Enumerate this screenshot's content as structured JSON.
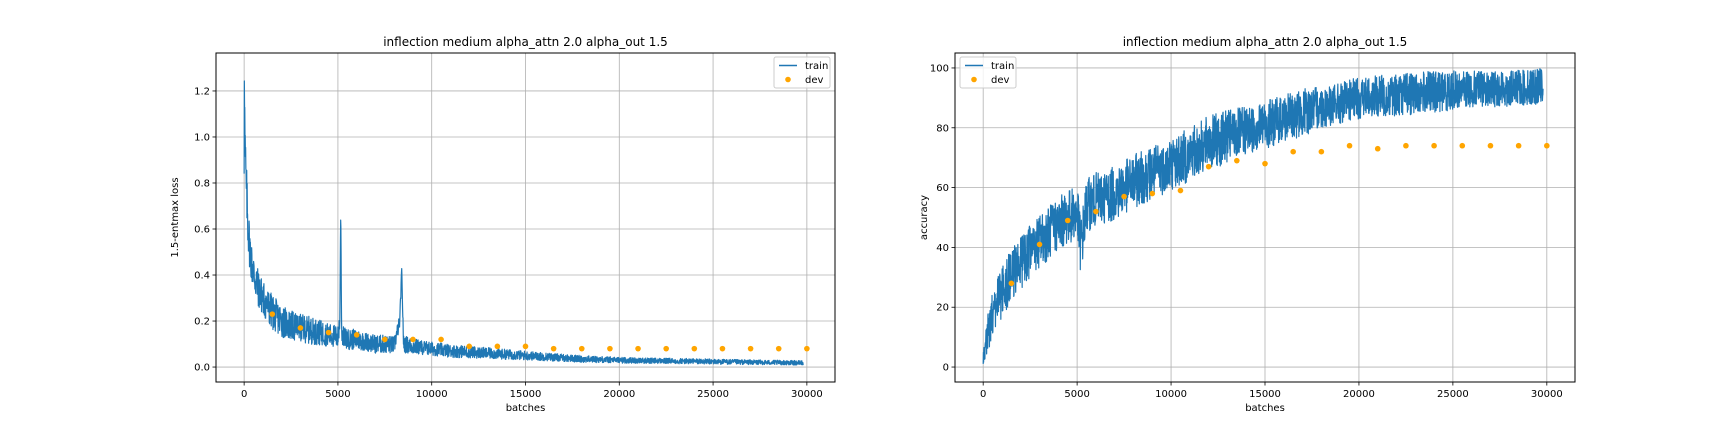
{
  "colors": {
    "train": "#1f77b4",
    "dev": "#ffa500",
    "grid": "#b0b0b0",
    "axes": "#000000",
    "legend_border": "#cccccc"
  },
  "chart_data": [
    {
      "type": "line",
      "title": "inflection medium alpha_attn 2.0 alpha_out 1.5",
      "xlabel": "batches",
      "ylabel": "1.5-entmax loss",
      "xlim": [
        -1500,
        31500
      ],
      "ylim": [
        -0.065,
        1.365
      ],
      "xticks": [
        0,
        5000,
        10000,
        15000,
        20000,
        25000,
        30000
      ],
      "yticks": [
        0.0,
        0.2,
        0.4,
        0.6,
        0.8,
        1.0,
        1.2
      ],
      "ytick_labels": [
        "0.0",
        "0.2",
        "0.4",
        "0.6",
        "0.8",
        "1.0",
        "1.2"
      ],
      "grid": true,
      "legend_placement": "top-right",
      "series": [
        {
          "name": "train",
          "kind": "line",
          "x": [
            0,
            10,
            50,
            100,
            150,
            200,
            300,
            400,
            600,
            800,
            1000,
            1300,
            1600,
            2000,
            2500,
            3000,
            3500,
            4000,
            4500,
            5000,
            5100,
            5150,
            5200,
            5300,
            5500,
            6000,
            6500,
            7000,
            7500,
            8000,
            8300,
            8400,
            8500,
            9000,
            9500,
            10000,
            11000,
            12000,
            13000,
            14000,
            15000,
            16000,
            17000,
            18000,
            19000,
            20000,
            22000,
            24000,
            26000,
            28000,
            29800
          ],
          "y": [
            0.85,
            1.3,
            0.95,
            0.8,
            0.72,
            0.62,
            0.52,
            0.45,
            0.38,
            0.33,
            0.3,
            0.26,
            0.23,
            0.2,
            0.18,
            0.17,
            0.16,
            0.15,
            0.14,
            0.13,
            0.2,
            0.69,
            0.15,
            0.13,
            0.12,
            0.12,
            0.11,
            0.1,
            0.1,
            0.095,
            0.2,
            0.42,
            0.1,
            0.09,
            0.085,
            0.08,
            0.07,
            0.065,
            0.06,
            0.055,
            0.05,
            0.045,
            0.04,
            0.035,
            0.033,
            0.03,
            0.027,
            0.025,
            0.022,
            0.02,
            0.018
          ],
          "noise_band": [
            0.02,
            0.06,
            0.14,
            0.13,
            0.12,
            0.11,
            0.1,
            0.09,
            0.09,
            0.08,
            0.08,
            0.08,
            0.075,
            0.07,
            0.065,
            0.06,
            0.06,
            0.055,
            0.05,
            0.05,
            0.05,
            0.02,
            0.05,
            0.045,
            0.045,
            0.045,
            0.04,
            0.04,
            0.04,
            0.038,
            0.03,
            0.02,
            0.038,
            0.035,
            0.032,
            0.03,
            0.028,
            0.026,
            0.024,
            0.022,
            0.02,
            0.018,
            0.016,
            0.015,
            0.014,
            0.013,
            0.012,
            0.012,
            0.011,
            0.01,
            0.01
          ]
        },
        {
          "name": "dev",
          "kind": "scatter",
          "x": [
            1500,
            3000,
            4500,
            6000,
            7500,
            9000,
            10500,
            12000,
            13500,
            15000,
            16500,
            18000,
            19500,
            21000,
            22500,
            24000,
            25500,
            27000,
            28500,
            30000
          ],
          "y": [
            0.23,
            0.17,
            0.15,
            0.14,
            0.12,
            0.12,
            0.12,
            0.09,
            0.09,
            0.09,
            0.08,
            0.08,
            0.08,
            0.08,
            0.08,
            0.08,
            0.08,
            0.08,
            0.08,
            0.08
          ]
        }
      ]
    },
    {
      "type": "line",
      "title": "inflection medium alpha_attn 2.0 alpha_out 1.5",
      "xlabel": "batches",
      "ylabel": "accuracy",
      "xlim": [
        -1500,
        31500
      ],
      "ylim": [
        -5,
        105
      ],
      "xticks": [
        0,
        5000,
        10000,
        15000,
        20000,
        25000,
        30000
      ],
      "yticks": [
        0,
        20,
        40,
        60,
        80,
        100
      ],
      "ytick_labels": [
        "0",
        "20",
        "40",
        "60",
        "80",
        "100"
      ],
      "grid": true,
      "legend_placement": "top-left",
      "series": [
        {
          "name": "train",
          "kind": "line",
          "x": [
            0,
            200,
            500,
            1000,
            1500,
            2000,
            2500,
            3000,
            3500,
            4000,
            4500,
            5000,
            5200,
            5500,
            6000,
            7000,
            8000,
            9000,
            10000,
            11000,
            12000,
            13000,
            14000,
            15000,
            16000,
            17000,
            18000,
            19000,
            20000,
            22000,
            24000,
            26000,
            28000,
            29800
          ],
          "y": [
            3,
            10,
            18,
            25,
            31,
            35,
            39,
            42,
            45,
            48,
            50,
            52,
            40,
            54,
            56,
            58,
            62,
            65,
            68,
            71,
            75,
            77,
            79,
            81,
            83,
            85,
            87,
            88,
            90,
            91,
            92,
            93,
            93,
            94
          ],
          "noise_band": [
            3,
            6,
            8,
            9,
            9,
            9,
            9,
            9,
            9,
            9,
            9,
            9,
            10,
            9,
            9,
            9,
            9,
            9,
            9,
            9,
            9,
            9,
            8,
            8,
            8,
            8,
            7,
            7,
            7,
            7,
            7,
            6,
            6,
            6
          ]
        },
        {
          "name": "dev",
          "kind": "scatter",
          "x": [
            1500,
            3000,
            4500,
            6000,
            7500,
            9000,
            10500,
            12000,
            13500,
            15000,
            16500,
            18000,
            19500,
            21000,
            22500,
            24000,
            25500,
            27000,
            28500,
            30000
          ],
          "y": [
            28,
            41,
            49,
            52,
            57,
            58,
            59,
            67,
            69,
            68,
            72,
            72,
            74,
            73,
            74,
            74,
            74,
            74,
            74,
            74
          ]
        }
      ]
    }
  ]
}
